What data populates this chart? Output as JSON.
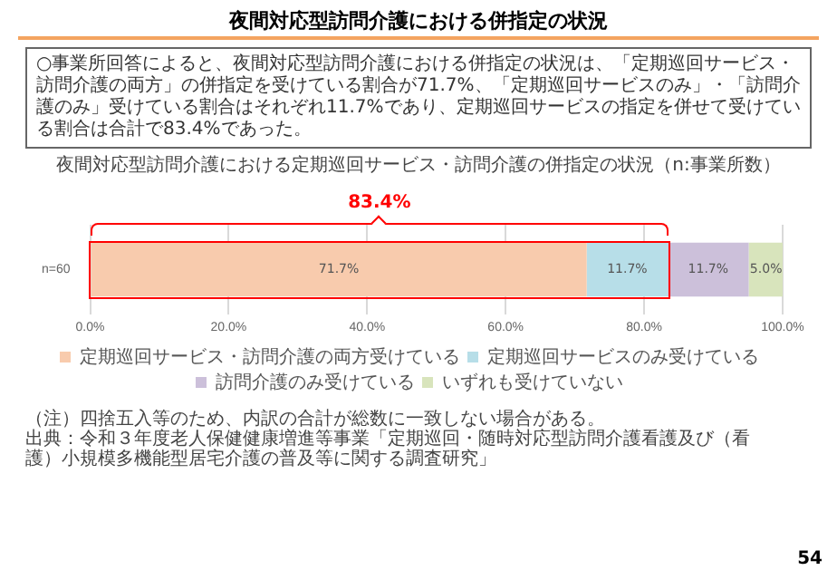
{
  "chart_data": {
    "type": "bar",
    "orientation": "horizontal",
    "stacked": true,
    "title": "夜間対応型訪問介護における併指定の状況",
    "subtitle": "夜間対応型訪問介護における定期巡回サービス・訪問介護の併指定の状況（n:事業所数）",
    "categories": [
      "n=60"
    ],
    "series": [
      {
        "name": "定期巡回サービス・訪問介護の両方受けている",
        "color": "#f8cbad",
        "values": [
          71.7
        ],
        "value_labels": [
          "71.7%"
        ]
      },
      {
        "name": "定期巡回サービスのみ受けている",
        "color": "#b7dee8",
        "values": [
          11.7
        ],
        "value_labels": [
          "11.7%"
        ]
      },
      {
        "name": "訪問介護のみ受けている",
        "color": "#ccc0da",
        "values": [
          11.7
        ],
        "value_labels": [
          "11.7%"
        ]
      },
      {
        "name": "いずれも受けていない",
        "color": "#d8e4bc",
        "values": [
          5.0
        ],
        "value_labels": [
          "5.0%"
        ]
      }
    ],
    "xlim": [
      0,
      100
    ],
    "xticks": [
      {
        "value": 0,
        "label": "0.0%"
      },
      {
        "value": 20,
        "label": "20.0%"
      },
      {
        "value": 40,
        "label": "40.0%"
      },
      {
        "value": 60,
        "label": "60.0%"
      },
      {
        "value": 80,
        "label": "80.0%"
      },
      {
        "value": 100,
        "label": "100.0%"
      }
    ],
    "grid": "x",
    "legend": "bottom",
    "annotations": [
      "○事業所回答によると、夜間対応型訪問介護における併指定の状況は、「定期巡回サービス・訪問介護の両方」の併指定を受けている割合が71.7%、「定期巡回サービスのみ」・「訪問介護のみ」受けている割合はそれぞれ11.7%であり、定期巡回サービスの指定を併せて受けている割合は合計で83.4%であった。",
      "83.4%",
      "（注）四捨五入等のため、内訳の合計が総数に一致しない場合がある。",
      "出典：令和３年度老人保健健康増進等事業「定期巡回・随時対応型訪問介護看護及び（看護）小規模多機能型居宅介護の普及等に関する調査研究」",
      "54"
    ]
  }
}
